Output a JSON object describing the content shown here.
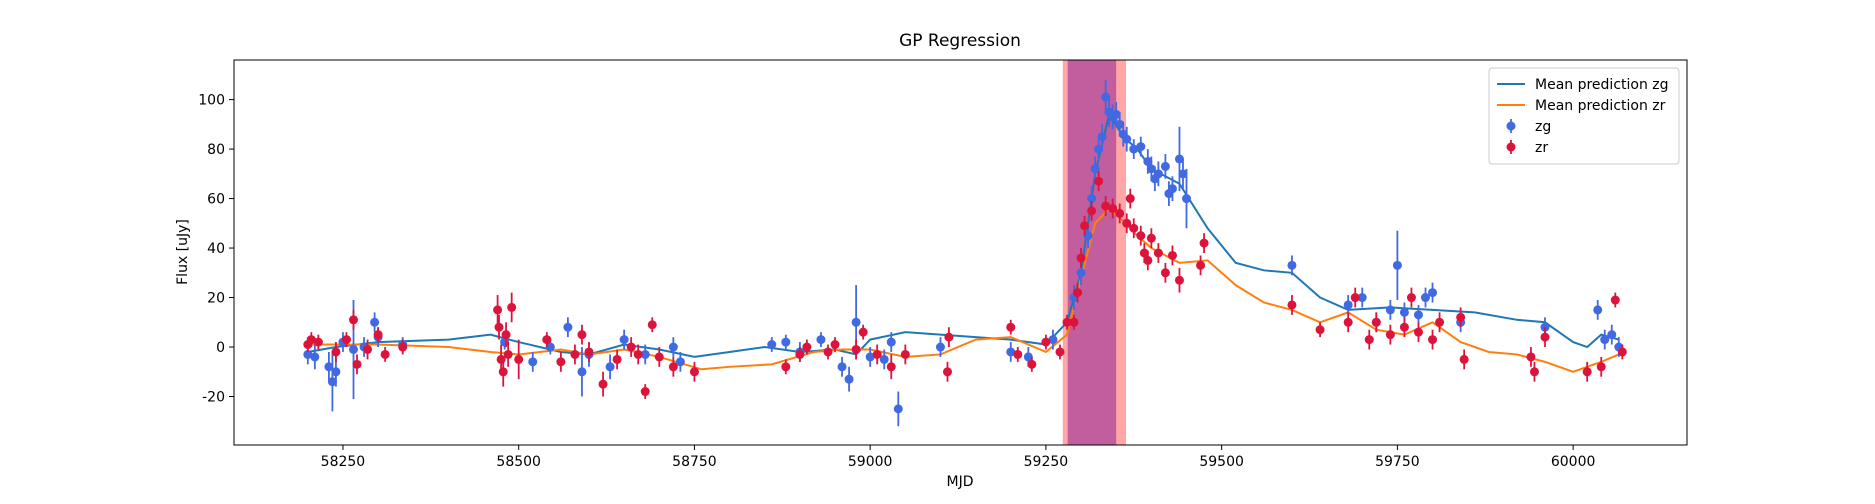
{
  "chart_data": {
    "type": "scatter",
    "title": "GP Regression",
    "x_label": "MJD",
    "y_label": "Flux [uJy]",
    "xlim": [
      58095,
      60162
    ],
    "ylim": [
      -39.6,
      116
    ],
    "xticks": [
      58250,
      58500,
      58750,
      59000,
      59250,
      59500,
      59750,
      60000
    ],
    "yticks": [
      -20,
      0,
      20,
      40,
      60,
      80,
      100
    ],
    "legend": "upper right",
    "spans": [
      {
        "range": [
          59274,
          59364
        ],
        "color": "#ff0000",
        "alpha": 0.35
      },
      {
        "range": [
          59281,
          59350
        ],
        "color": "#9a2f9a",
        "alpha": 0.6
      }
    ],
    "series": [
      {
        "name": "Mean prediction zg",
        "type": "line",
        "color": "#1f77b4",
        "x": [
          58200,
          58240,
          58300,
          58400,
          58460,
          58500,
          58560,
          58600,
          58650,
          58700,
          58750,
          58800,
          58850,
          58900,
          58950,
          58980,
          59000,
          59050,
          59100,
          59150,
          59200,
          59250,
          59280,
          59300,
          59320,
          59340,
          59360,
          59380,
          59400,
          59440,
          59480,
          59520,
          59560,
          59600,
          59640,
          59680,
          59740,
          59800,
          59860,
          59920,
          59960,
          60000,
          60020,
          60040,
          60065
        ],
        "values": [
          -2,
          0,
          2,
          3,
          5,
          2,
          -2,
          -3,
          1,
          -1,
          -4,
          -2,
          0,
          -2,
          -1,
          -3,
          3,
          6,
          5,
          4,
          3,
          1,
          10,
          30,
          70,
          94,
          85,
          80,
          72,
          66,
          48,
          34,
          31,
          30,
          20,
          15,
          16,
          15,
          14,
          11,
          10,
          2,
          0,
          5,
          3
        ]
      },
      {
        "name": "Mean prediction zr",
        "type": "line",
        "color": "#ff7f0e",
        "x": [
          58200,
          58300,
          58400,
          58460,
          58500,
          58560,
          58600,
          58650,
          58700,
          58760,
          58800,
          58860,
          58920,
          58960,
          59000,
          59050,
          59100,
          59150,
          59200,
          59250,
          59280,
          59300,
          59320,
          59340,
          59360,
          59380,
          59400,
          59440,
          59480,
          59520,
          59560,
          59600,
          59640,
          59680,
          59720,
          59760,
          59800,
          59840,
          59880,
          59920,
          59960,
          60000,
          60040,
          60065
        ],
        "values": [
          1,
          1,
          0,
          -2,
          -3,
          -1,
          -3,
          -1,
          -4,
          -9,
          -8,
          -7,
          -2,
          -1,
          -1,
          -4,
          -3,
          3,
          4,
          -2,
          5,
          28,
          50,
          56,
          51,
          45,
          40,
          34,
          35,
          25,
          18,
          15,
          10,
          14,
          7,
          5,
          10,
          2,
          -2,
          -3,
          -6,
          -10,
          -6,
          -3
        ]
      },
      {
        "name": "zg",
        "type": "errorbar",
        "color": "#4169e1",
        "x": [
          58200,
          58210,
          58230,
          58235,
          58240,
          58250,
          58265,
          58280,
          58295,
          58300,
          58335,
          58480,
          58520,
          58545,
          58570,
          58590,
          58600,
          58630,
          58650,
          58680,
          58720,
          58730,
          58860,
          58880,
          58900,
          58930,
          58960,
          58970,
          58980,
          59000,
          59020,
          59030,
          59040,
          59100,
          59200,
          59225,
          59260,
          59290,
          59300,
          59310,
          59315,
          59320,
          59325,
          59330,
          59335,
          59340,
          59345,
          59350,
          59355,
          59360,
          59365,
          59375,
          59385,
          59395,
          59400,
          59405,
          59410,
          59420,
          59425,
          59430,
          59440,
          59445,
          59450,
          59600,
          59680,
          59700,
          59720,
          59740,
          59750,
          59760,
          59780,
          59790,
          59800,
          59840,
          59960,
          60035,
          60045,
          60055,
          60065
        ],
        "values": [
          -3,
          -4,
          -8,
          -14,
          -10,
          2,
          -1,
          0,
          10,
          4,
          1,
          2,
          -6,
          0,
          8,
          -10,
          -3,
          -8,
          3,
          -3,
          0,
          -6,
          1,
          2,
          -2,
          3,
          -8,
          -13,
          10,
          -4,
          -5,
          2,
          -25,
          0,
          -2,
          -4,
          3,
          20,
          30,
          45,
          60,
          72,
          80,
          85,
          101,
          95,
          93,
          94,
          90,
          86,
          84,
          80,
          81,
          75,
          72,
          68,
          70,
          73,
          62,
          64,
          76,
          70,
          60,
          33,
          17,
          20,
          10,
          15,
          33,
          14,
          13,
          20,
          22,
          10,
          8,
          15,
          3,
          5,
          0
        ],
        "errors": [
          4,
          5,
          6,
          12,
          6,
          4,
          20,
          4,
          4,
          4,
          3,
          3,
          4,
          3,
          4,
          10,
          5,
          5,
          4,
          4,
          4,
          4,
          3,
          3,
          4,
          3,
          4,
          5,
          15,
          4,
          4,
          4,
          7,
          4,
          4,
          4,
          4,
          5,
          5,
          5,
          5,
          5,
          5,
          5,
          7,
          6,
          5,
          5,
          5,
          5,
          5,
          4,
          4,
          5,
          5,
          5,
          5,
          5,
          5,
          5,
          13,
          6,
          12,
          4,
          4,
          4,
          4,
          4,
          14,
          4,
          4,
          4,
          4,
          4,
          4,
          4,
          4,
          4,
          4
        ]
      },
      {
        "name": "zr",
        "type": "errorbar",
        "color": "#dc143c",
        "x": [
          58200,
          58205,
          58215,
          58240,
          58255,
          58265,
          58270,
          58285,
          58300,
          58310,
          58335,
          58470,
          58472,
          58475,
          58478,
          58482,
          58485,
          58490,
          58500,
          58540,
          58560,
          58580,
          58590,
          58600,
          58620,
          58640,
          58660,
          58670,
          58680,
          58690,
          58700,
          58720,
          58750,
          58880,
          58900,
          58910,
          58940,
          58950,
          58980,
          58990,
          59010,
          59030,
          59050,
          59110,
          59112,
          59200,
          59210,
          59230,
          59250,
          59270,
          59280,
          59290,
          59295,
          59300,
          59305,
          59315,
          59325,
          59335,
          59345,
          59355,
          59365,
          59370,
          59375,
          59385,
          59390,
          59395,
          59400,
          59410,
          59420,
          59430,
          59440,
          59470,
          59475,
          59600,
          59640,
          59680,
          59690,
          59710,
          59720,
          59740,
          59760,
          59770,
          59780,
          59800,
          59810,
          59840,
          59845,
          59940,
          59945,
          59960,
          60020,
          60040,
          60060,
          60070
        ],
        "values": [
          1,
          3,
          2,
          -2,
          3,
          11,
          -7,
          -1,
          5,
          -3,
          0,
          15,
          8,
          -5,
          -10,
          5,
          -3,
          16,
          -5,
          3,
          -6,
          -3,
          5,
          -2,
          -15,
          -5,
          0,
          -3,
          -18,
          9,
          -4,
          -8,
          -10,
          -8,
          -3,
          0,
          -2,
          1,
          -1,
          6,
          -3,
          -8,
          -3,
          -10,
          4,
          8,
          -3,
          -7,
          2,
          -2,
          10,
          10,
          22,
          36,
          49,
          55,
          67,
          57,
          56,
          54,
          50,
          60,
          48,
          45,
          38,
          35,
          44,
          38,
          30,
          37,
          27,
          33,
          42,
          17,
          7,
          10,
          20,
          3,
          10,
          5,
          8,
          20,
          6,
          3,
          10,
          12,
          -5,
          -4,
          -10,
          4,
          -10,
          -8,
          19,
          -2
        ],
        "errors": [
          3,
          3,
          3,
          4,
          3,
          4,
          4,
          4,
          3,
          3,
          3,
          6,
          5,
          6,
          6,
          5,
          5,
          6,
          8,
          3,
          4,
          4,
          4,
          4,
          5,
          4,
          4,
          4,
          3,
          3,
          4,
          4,
          4,
          3,
          3,
          3,
          3,
          3,
          4,
          3,
          4,
          5,
          4,
          4,
          4,
          3,
          3,
          3,
          3,
          3,
          3,
          3,
          4,
          4,
          4,
          4,
          4,
          4,
          4,
          4,
          4,
          4,
          4,
          4,
          4,
          4,
          4,
          4,
          4,
          4,
          5,
          4,
          4,
          4,
          3,
          4,
          4,
          4,
          4,
          4,
          4,
          4,
          4,
          4,
          4,
          4,
          4,
          4,
          4,
          4,
          4,
          4,
          3,
          3
        ]
      }
    ]
  }
}
